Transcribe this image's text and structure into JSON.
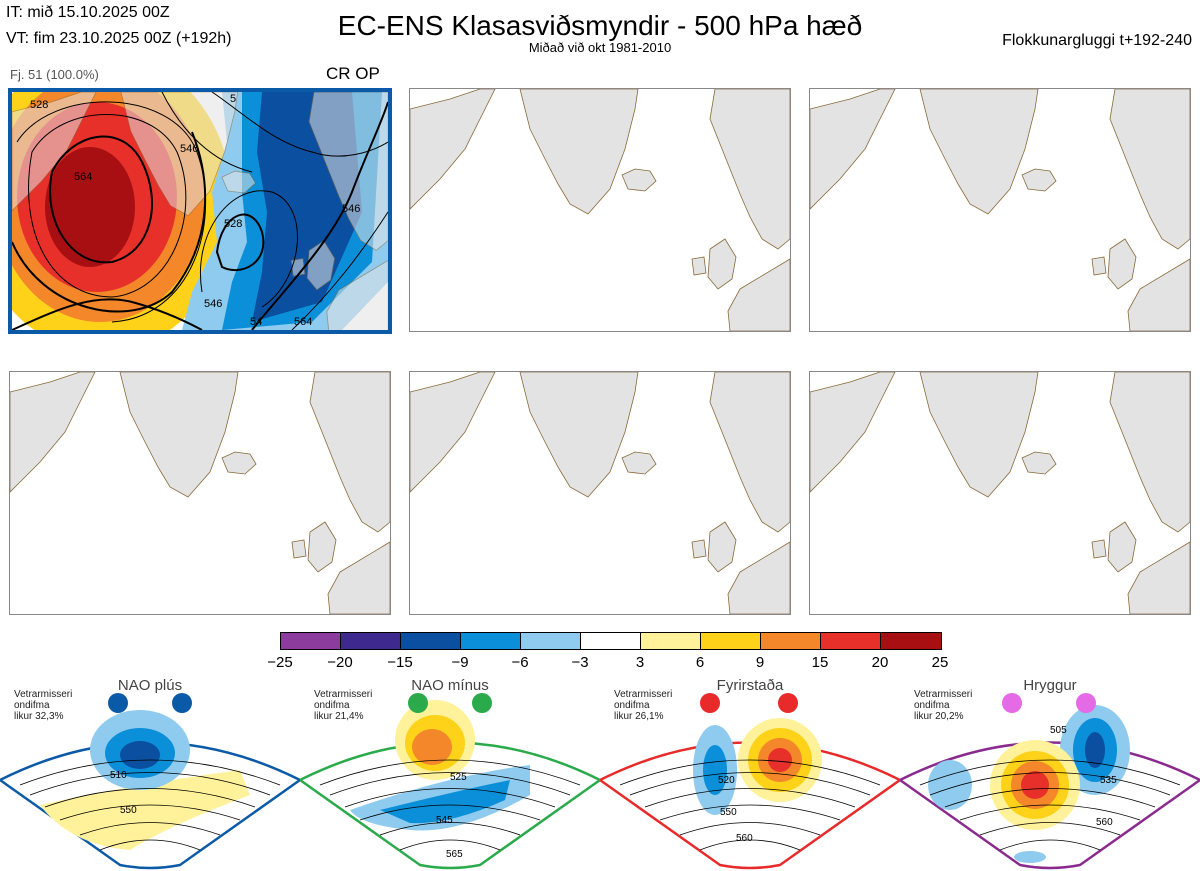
{
  "header": {
    "it_line": "IT: mið 15.10.2025 00Z",
    "vt_line": "VT: fim 23.10.2025 00Z  (+192h)",
    "title": "EC-ENS Klasasviðsmyndir - 500 hPa hæð",
    "subtitle": "Miðað við okt 1981-2010",
    "window": "Flokkunargluggi t+192-240"
  },
  "main_panel": {
    "label": "Fj. 51 (100.0%)",
    "tag": "CR OP",
    "border_color": "#0b5aa8",
    "contour_labels": [
      "564",
      "546",
      "528",
      "546",
      "546",
      "564",
      "5",
      "54",
      "528"
    ]
  },
  "colorbar": {
    "ticks": [
      "−25",
      "−20",
      "−15",
      "−9",
      "−6",
      "−3",
      "3",
      "6",
      "9",
      "15",
      "20",
      "25"
    ],
    "colors": [
      "#8c3c9c",
      "#3e2a8e",
      "#0b4fa0",
      "#0b8fd8",
      "#8fcbef",
      "#ffffff",
      "#fff29a",
      "#ffd21a",
      "#f3872a",
      "#e8302a",
      "#a80f12"
    ]
  },
  "regimes": [
    {
      "name": "NAO plús",
      "meta": [
        "Vetrarmisseri",
        "ondifma",
        "likur 32,3%"
      ],
      "color": "#0b5aa8",
      "labels": [
        "510",
        "550"
      ]
    },
    {
      "name": "NAO mínus",
      "meta": [
        "Vetrarmisseri",
        "ondifma",
        "likur 21,4%"
      ],
      "color": "#2aaa4a",
      "labels": [
        "525",
        "545",
        "565"
      ]
    },
    {
      "name": "Fyrirstaða",
      "meta": [
        "Vetrarmisseri",
        "ondifma",
        "likur 26,1%"
      ],
      "color": "#e82a2a",
      "labels": [
        "520",
        "550",
        "560"
      ]
    },
    {
      "name": "Hryggur",
      "meta": [
        "Vetrarmisseri",
        "ondifma",
        "likur 20,2%"
      ],
      "color": "#8a2a8e",
      "labels": [
        "505",
        "535",
        "560"
      ]
    }
  ]
}
